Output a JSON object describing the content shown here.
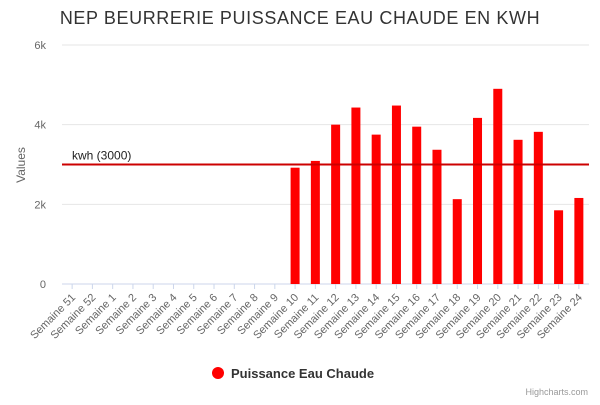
{
  "chart_data": {
    "type": "bar",
    "title": "NEP BEURRERIE PUISSANCE EAU CHAUDE EN KWH",
    "ylabel": "Values",
    "xlabel": "",
    "ylim": [
      0,
      6000
    ],
    "y_ticks": [
      {
        "value": 0,
        "label": "0"
      },
      {
        "value": 2000,
        "label": "2k"
      },
      {
        "value": 4000,
        "label": "4k"
      },
      {
        "value": 6000,
        "label": "6k"
      }
    ],
    "grid": true,
    "categories": [
      "Semaine 51",
      "Semaine 52",
      "Semaine 1",
      "Semaine 2",
      "Semaine 3",
      "Semaine 4",
      "Semaine 5",
      "Semaine 6",
      "Semaine 7",
      "Semaine 8",
      "Semaine 9",
      "Semaine 10",
      "Semaine 11",
      "Semaine 12",
      "Semaine 13",
      "Semaine 14",
      "Semaine 15",
      "Semaine 16",
      "Semaine 17",
      "Semaine 18",
      "Semaine 19",
      "Semaine 20",
      "Semaine 21",
      "Semaine 22",
      "Semaine 23",
      "Semaine 24"
    ],
    "series": [
      {
        "name": "Puissance Eau Chaude",
        "color": "#ff0000",
        "values": [
          null,
          null,
          null,
          null,
          null,
          null,
          null,
          null,
          null,
          null,
          null,
          2920,
          3090,
          4000,
          4430,
          3750,
          4480,
          3950,
          3370,
          2130,
          4170,
          4900,
          3620,
          3820,
          1850,
          2160
        ]
      }
    ],
    "plot_lines": [
      {
        "value": 3000,
        "label": "kwh (3000)",
        "color": "#cc0000"
      }
    ],
    "legend": {
      "position": "bottom-center"
    },
    "credits": "Highcharts.com"
  }
}
